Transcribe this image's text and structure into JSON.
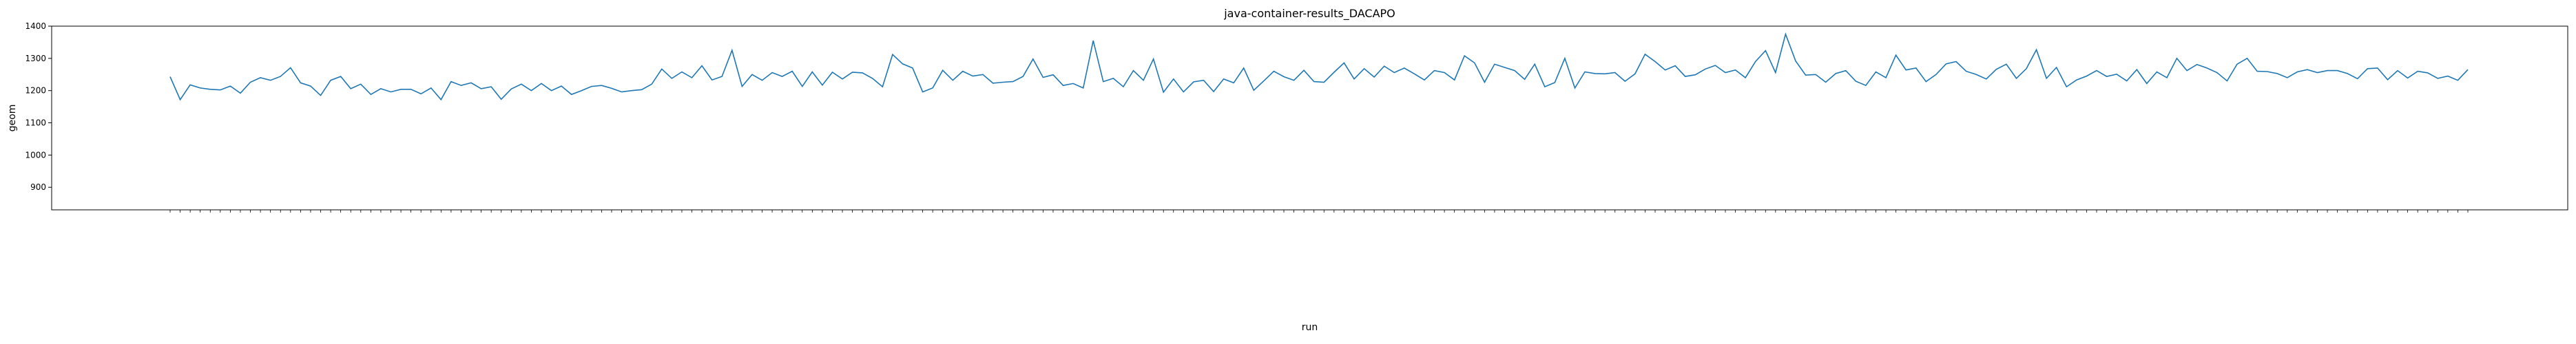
{
  "chart_data": {
    "type": "line",
    "title": "java-container-results_DACAPO",
    "xlabel": "run",
    "ylabel": "geom",
    "ylim": [
      830,
      1400
    ],
    "yticks": [
      900,
      1000,
      1100,
      1200,
      1300,
      1400
    ],
    "grid": false,
    "legend": "none",
    "line_color": "#1f77b4",
    "series": [
      {
        "values": [
          1243,
          1172,
          1218,
          1208,
          1204,
          1202,
          1214,
          1192,
          1226,
          1240,
          1232,
          1244,
          1271,
          1224,
          1214,
          1185,
          1232,
          1244,
          1206,
          1220,
          1188,
          1206,
          1196,
          1204,
          1204,
          1190,
          1208,
          1172,
          1228,
          1216,
          1224,
          1206,
          1212,
          1173,
          1205,
          1220,
          1200,
          1222,
          1200,
          1214,
          1188,
          1200,
          1213,
          1216,
          1207,
          1196,
          1200,
          1203,
          1220,
          1267,
          1238,
          1258,
          1240,
          1277,
          1233,
          1244,
          1325,
          1213,
          1250,
          1232,
          1256,
          1244,
          1260,
          1213,
          1258,
          1217,
          1257,
          1236,
          1257,
          1255,
          1238,
          1212,
          1312,
          1283,
          1270,
          1196,
          1208,
          1263,
          1232,
          1260,
          1245,
          1250,
          1223,
          1226,
          1228,
          1244,
          1298,
          1241,
          1249,
          1216,
          1222,
          1208,
          1355,
          1228,
          1238,
          1212,
          1262,
          1232,
          1298,
          1195,
          1236,
          1196,
          1227,
          1232,
          1197,
          1236,
          1224,
          1270,
          1201,
          1230,
          1260,
          1243,
          1232,
          1263,
          1228,
          1226,
          1257,
          1286,
          1236,
          1268,
          1242,
          1276,
          1256,
          1270,
          1252,
          1233,
          1262,
          1256,
          1233,
          1308,
          1286,
          1226,
          1282,
          1272,
          1262,
          1235,
          1282,
          1212,
          1225,
          1300,
          1208,
          1258,
          1253,
          1252,
          1256,
          1229,
          1252,
          1313,
          1290,
          1264,
          1277,
          1244,
          1249,
          1267,
          1278,
          1256,
          1264,
          1240,
          1290,
          1324,
          1256,
          1375,
          1292,
          1248,
          1250,
          1226,
          1253,
          1262,
          1229,
          1216,
          1258,
          1240,
          1310,
          1264,
          1270,
          1228,
          1250,
          1283,
          1290,
          1260,
          1250,
          1236,
          1266,
          1282,
          1238,
          1268,
          1327,
          1238,
          1272,
          1212,
          1233,
          1245,
          1262,
          1244,
          1251,
          1230,
          1265,
          1222,
          1258,
          1240,
          1300,
          1262,
          1281,
          1270,
          1256,
          1230,
          1282,
          1300,
          1260,
          1259,
          1253,
          1240,
          1258,
          1265,
          1256,
          1262,
          1262,
          1253,
          1237,
          1268,
          1270,
          1234,
          1262,
          1239,
          1260,
          1255,
          1238,
          1245,
          1232,
          1265
        ],
        "note_values_are_replaced_below": true
      }
    ]
  }
}
